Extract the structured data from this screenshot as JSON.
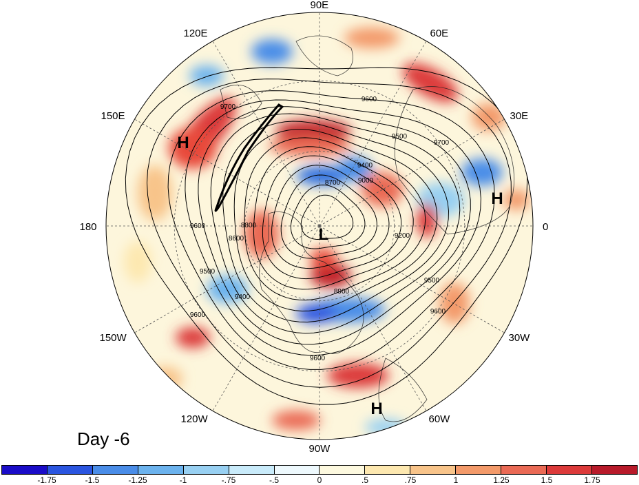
{
  "map": {
    "title": "Day -6",
    "longitude_labels": [
      "90E",
      "60E",
      "30E",
      "0",
      "30W",
      "60W",
      "90W",
      "120W",
      "150W",
      "180",
      "150E",
      "120E"
    ],
    "pressure_centers": [
      "H",
      "H",
      "H",
      "L"
    ],
    "contour_labels": [
      "9700",
      "9600",
      "9500",
      "9400",
      "9000",
      "8700",
      "8800",
      "8600",
      "9200",
      "9600",
      "9500",
      "9400",
      "8900",
      "9600",
      "9500",
      "9600",
      "9600",
      "9700"
    ]
  },
  "colorbar": {
    "tick_labels": [
      "-1.75",
      "-1.5",
      "-1.25",
      "-1",
      "-.75",
      "-.5",
      "0",
      ".5",
      ".75",
      "1",
      "1.25",
      "1.5",
      "1.75"
    ],
    "colors": [
      "#1a0cc8",
      "#2a55e0",
      "#4a8de8",
      "#6cb3ee",
      "#98d0f2",
      "#c9ebfa",
      "#eef9fd",
      "#fdf9df",
      "#fde8b0",
      "#f8c48a",
      "#f39a6a",
      "#ea6a55",
      "#dc3a3a",
      "#b81a2a"
    ]
  },
  "colors": {
    "contour": "#000000",
    "coast": "#222222"
  }
}
